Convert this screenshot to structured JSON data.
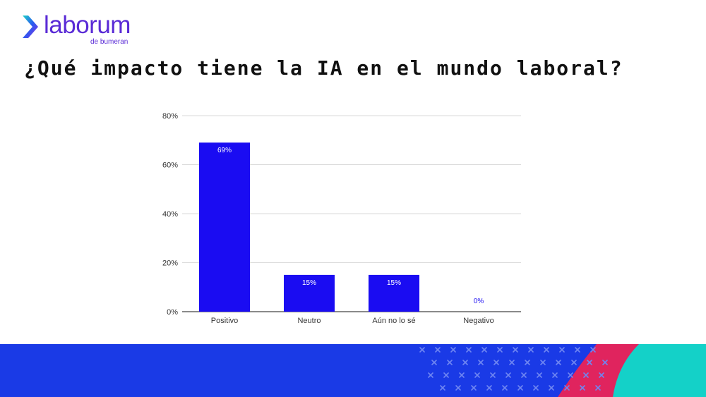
{
  "brand": {
    "name": "laborum",
    "sub": "de bumeran",
    "color": "#5a2bd6"
  },
  "title": "¿Qué impacto tiene la IA en el mundo laboral?",
  "chart_data": {
    "type": "bar",
    "categories": [
      "Positivo",
      "Neutro",
      "Aún no lo sé",
      "Negativo"
    ],
    "values": [
      69,
      15,
      15,
      0
    ],
    "data_labels": [
      "69%",
      "15%",
      "15%",
      "0%"
    ],
    "y_ticks": [
      "0%",
      "20%",
      "40%",
      "60%",
      "80%"
    ],
    "ylim": [
      0,
      80
    ],
    "grid": true,
    "bar_color": "#1a0cf2",
    "label_color_inside": "#ffffff",
    "label_color_outside": "#1a0cf2"
  },
  "footer": {
    "colors": [
      "#1a3ae6",
      "#e0245e",
      "#14d1c8"
    ]
  }
}
